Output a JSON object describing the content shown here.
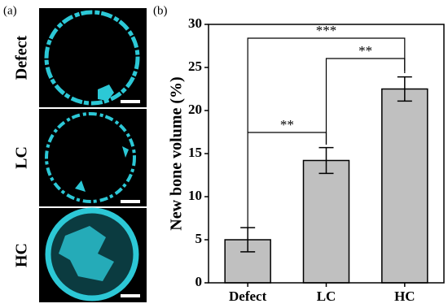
{
  "panel_a": {
    "label": "(a)",
    "rows": [
      "Defect",
      "LC",
      "HC"
    ]
  },
  "chart_data": {
    "type": "bar",
    "panel_label": "(b)",
    "ylabel": "New bone volume (%)",
    "categories": [
      "Defect",
      "LC",
      "HC"
    ],
    "values": [
      5.0,
      14.2,
      22.5
    ],
    "errors": [
      1.4,
      1.5,
      1.4
    ],
    "color": "#c0c0c0",
    "ylim": [
      0,
      30
    ],
    "yticks": [
      0,
      5,
      10,
      15,
      20,
      25,
      30
    ],
    "annotations": [
      "**",
      "**",
      "***"
    ]
  }
}
